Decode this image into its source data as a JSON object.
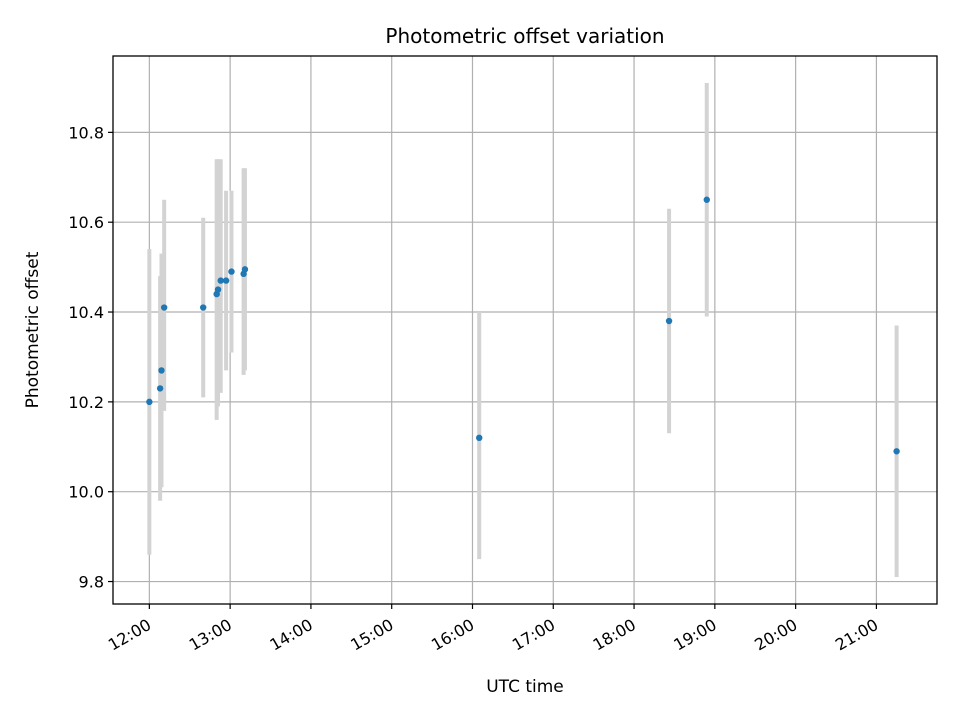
{
  "chart_data": {
    "type": "scatter",
    "title": "Photometric offset variation",
    "xlabel": "UTC time",
    "ylabel": "Photometric offset",
    "x_ticks": [
      "12:00",
      "13:00",
      "14:00",
      "15:00",
      "16:00",
      "17:00",
      "18:00",
      "19:00",
      "20:00",
      "21:00"
    ],
    "y_ticks": [
      "9.8",
      "10.0",
      "10.2",
      "10.4",
      "10.6",
      "10.8"
    ],
    "xlim": [
      "11:33",
      "21:45"
    ],
    "ylim": [
      9.75,
      10.97
    ],
    "grid": true,
    "points": [
      {
        "x": "12:00",
        "y": 10.2,
        "y_low": 9.86,
        "y_high": 10.54
      },
      {
        "x": "12:08",
        "y": 10.23,
        "y_low": 9.98,
        "y_high": 10.48
      },
      {
        "x": "12:09",
        "y": 10.27,
        "y_low": 10.01,
        "y_high": 10.53
      },
      {
        "x": "12:11",
        "y": 10.41,
        "y_low": 10.18,
        "y_high": 10.65
      },
      {
        "x": "12:40",
        "y": 10.41,
        "y_low": 10.21,
        "y_high": 10.61
      },
      {
        "x": "12:50",
        "y": 10.44,
        "y_low": 10.16,
        "y_high": 10.74
      },
      {
        "x": "12:51",
        "y": 10.45,
        "y_low": 10.19,
        "y_high": 10.74
      },
      {
        "x": "12:53",
        "y": 10.47,
        "y_low": 10.22,
        "y_high": 10.74
      },
      {
        "x": "12:57",
        "y": 10.47,
        "y_low": 10.27,
        "y_high": 10.67
      },
      {
        "x": "13:01",
        "y": 10.49,
        "y_low": 10.31,
        "y_high": 10.67
      },
      {
        "x": "13:10",
        "y": 10.485,
        "y_low": 10.26,
        "y_high": 10.72
      },
      {
        "x": "13:11",
        "y": 10.495,
        "y_low": 10.27,
        "y_high": 10.72
      },
      {
        "x": "16:05",
        "y": 10.12,
        "y_low": 9.85,
        "y_high": 10.4
      },
      {
        "x": "18:26",
        "y": 10.38,
        "y_low": 10.13,
        "y_high": 10.63
      },
      {
        "x": "18:54",
        "y": 10.65,
        "y_low": 10.39,
        "y_high": 10.91
      },
      {
        "x": "21:15",
        "y": 10.09,
        "y_low": 9.81,
        "y_high": 10.37
      }
    ],
    "colors": {
      "marker": "#1f77b4",
      "errorbar": "#d3d3d3",
      "grid": "#b0b0b0",
      "axes": "#000000"
    }
  }
}
